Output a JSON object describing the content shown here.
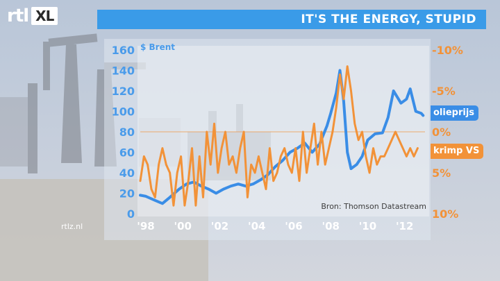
{
  "logo": {
    "brand": "rtl",
    "channel": "XL"
  },
  "header": {
    "title": "IT'S THE ENERGY, STUPID"
  },
  "footer": {
    "site": "rtlz.nl",
    "source": "Bron: Thomson Datastream"
  },
  "colors": {
    "oil": "#3a8de6",
    "krimp": "#f29238",
    "title_bar": "#3a9be8"
  },
  "chart_data": {
    "type": "line",
    "title": "IT'S THE ENERGY, STUPID",
    "ylabel_left": "$ Brent",
    "ylim_left": [
      0,
      160
    ],
    "yticks_left": [
      "160",
      "140",
      "120",
      "100",
      "80",
      "60",
      "40",
      "20",
      "0"
    ],
    "ylim_right": [
      "-10%",
      "10%"
    ],
    "yticks_right": [
      "-10%",
      "-5%",
      "0%",
      "5%",
      "10%"
    ],
    "xlim": [
      1997.7,
      2013.1
    ],
    "xticks": [
      "'98",
      "'00",
      "'02",
      "'04",
      "'06",
      "'08",
      "'10",
      "'12"
    ],
    "xtick_values": [
      1998,
      2000,
      2002,
      2004,
      2006,
      2008,
      2010,
      2012
    ],
    "grid": false,
    "series": [
      {
        "name": "olieprijs",
        "axis": "left",
        "x": [
          1997.7,
          1998.0,
          1998.5,
          1998.9,
          1999.3,
          1999.8,
          2000.2,
          2000.6,
          2001.0,
          2001.4,
          2001.8,
          2002.2,
          2002.6,
          2003.0,
          2003.4,
          2003.8,
          2004.2,
          2004.6,
          2005.0,
          2005.4,
          2005.8,
          2006.2,
          2006.6,
          2007.0,
          2007.4,
          2007.8,
          2008.0,
          2008.3,
          2008.5,
          2008.7,
          2008.9,
          2009.1,
          2009.4,
          2009.7,
          2010.0,
          2010.4,
          2010.8,
          2011.1,
          2011.4,
          2011.8,
          2012.1,
          2012.3,
          2012.6,
          2012.9,
          2013.0
        ],
        "values": [
          18,
          17,
          13,
          10,
          16,
          24,
          29,
          31,
          27,
          24,
          20,
          24,
          27,
          29,
          27,
          29,
          33,
          38,
          46,
          52,
          60,
          64,
          69,
          60,
          68,
          86,
          98,
          118,
          140,
          110,
          60,
          44,
          48,
          56,
          72,
          78,
          79,
          94,
          120,
          108,
          112,
          122,
          100,
          98,
          96
        ]
      },
      {
        "name": "krimp VS",
        "axis": "right",
        "x": [
          1997.7,
          1997.9,
          1998.1,
          1998.3,
          1998.5,
          1998.7,
          1998.9,
          1999.1,
          1999.3,
          1999.5,
          1999.7,
          1999.9,
          2000.1,
          2000.3,
          2000.5,
          2000.7,
          2000.9,
          2001.1,
          2001.3,
          2001.5,
          2001.7,
          2001.9,
          2002.1,
          2002.3,
          2002.5,
          2002.7,
          2002.9,
          2003.1,
          2003.3,
          2003.5,
          2003.7,
          2003.9,
          2004.1,
          2004.3,
          2004.5,
          2004.7,
          2004.9,
          2005.1,
          2005.3,
          2005.5,
          2005.7,
          2005.9,
          2006.1,
          2006.3,
          2006.5,
          2006.7,
          2006.9,
          2007.1,
          2007.3,
          2007.5,
          2007.7,
          2007.9,
          2008.1,
          2008.3,
          2008.5,
          2008.7,
          2008.9,
          2009.1,
          2009.3,
          2009.5,
          2009.7,
          2009.9,
          2010.1,
          2010.3,
          2010.5,
          2010.7,
          2010.9,
          2011.1,
          2011.3,
          2011.5,
          2011.7,
          2011.9,
          2012.1,
          2012.3,
          2012.5,
          2012.7
        ],
        "values": [
          6,
          3,
          4,
          7,
          8,
          4,
          2,
          4,
          5,
          9,
          5,
          3,
          9,
          6,
          2,
          9,
          3,
          8,
          0,
          4,
          -1,
          5,
          2,
          0,
          4,
          3,
          5,
          2,
          0,
          8,
          4,
          5,
          3,
          5,
          7,
          2,
          6,
          5,
          3,
          2,
          4,
          5,
          2,
          6,
          0,
          5,
          2,
          -1,
          4,
          0,
          4,
          2,
          0,
          -3,
          -7,
          -4,
          -8,
          -5,
          -1,
          1,
          0,
          3,
          5,
          2,
          4,
          3,
          3,
          2,
          1,
          0,
          1,
          2,
          3,
          2,
          3,
          2
        ]
      }
    ]
  }
}
